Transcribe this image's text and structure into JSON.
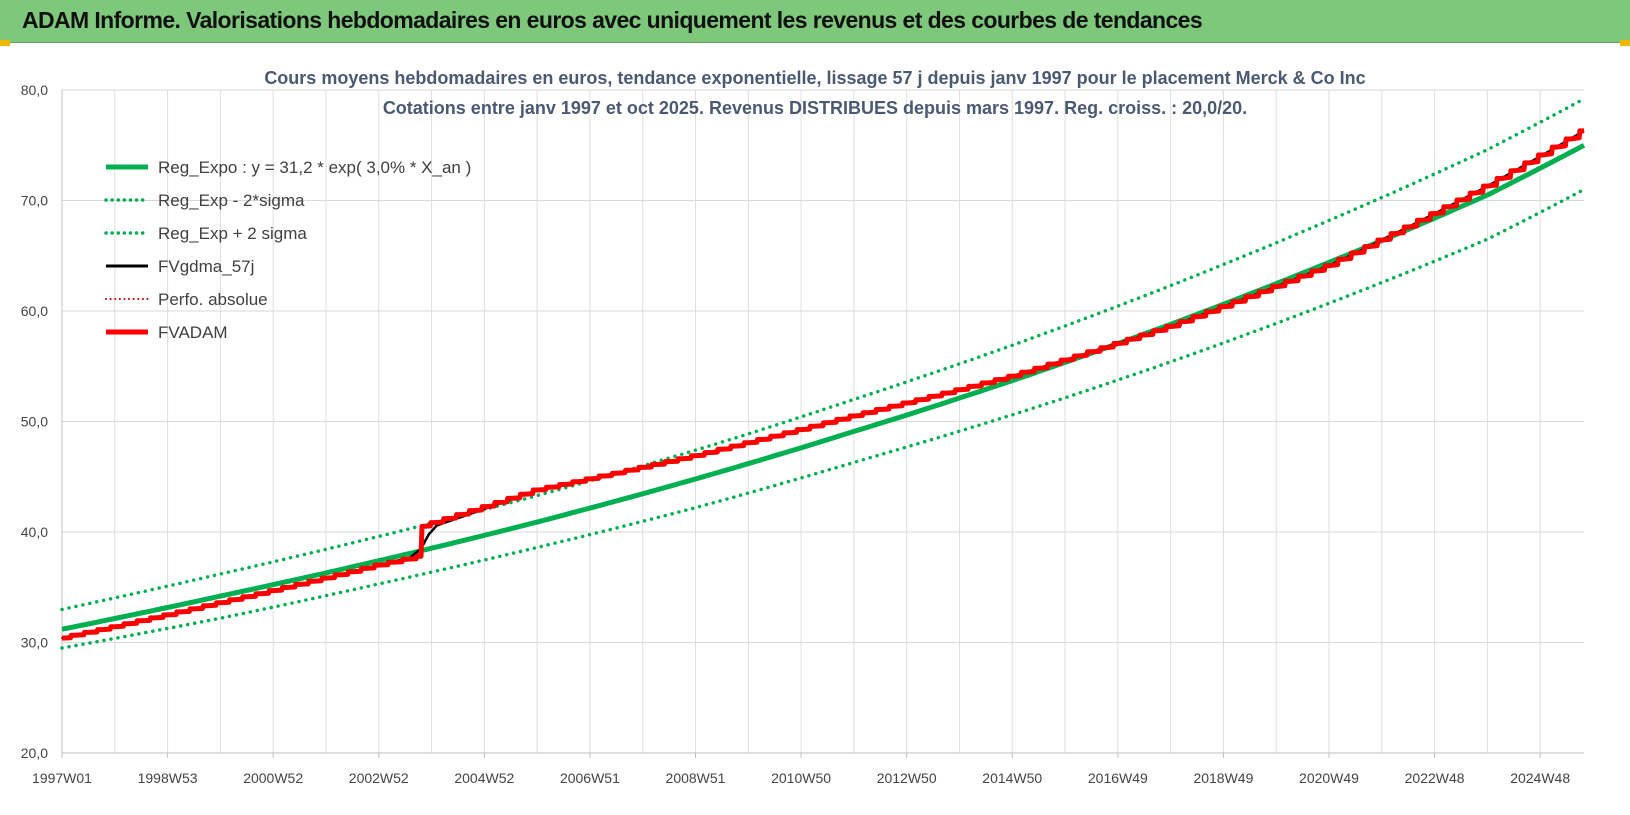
{
  "header": {
    "title": "ADAM Informe. Valorisations hebdomadaires en euros avec uniquement les revenus et des courbes de tendances"
  },
  "chart_data": {
    "type": "line",
    "title_line1": "Cours moyens hebdomadaires en euros, tendance exponentielle, lissage 57 j depuis janv 1997 pour le placement Merck & Co Inc",
    "title_line2": "Cotations entre janv 1997 et oct 2025. Revenus DISTRIBUES depuis mars 1997. Reg. croiss. : 20,0/20.",
    "ylim": [
      20,
      80
    ],
    "y_ticks": [
      "20,0",
      "30,0",
      "40,0",
      "50,0",
      "60,0",
      "70,0",
      "80,0"
    ],
    "x_range_years": [
      1997.0,
      2025.83
    ],
    "x_tick_labels": [
      "1997W01",
      "1998W53",
      "2000W52",
      "2002W52",
      "2004W52",
      "2006W51",
      "2008W51",
      "2010W50",
      "2012W50",
      "2014W50",
      "2016W49",
      "2018W49",
      "2020W49",
      "2022W48",
      "2024W48"
    ],
    "x_tick_years": [
      1997.0,
      1999.0,
      2001.0,
      2003.0,
      2005.0,
      2007.0,
      2009.0,
      2011.0,
      2013.0,
      2015.0,
      2017.0,
      2019.0,
      2021.0,
      2023.0,
      2025.0
    ],
    "grid": true,
    "legend_position": "top-left",
    "series": [
      {
        "name": "Reg_Expo : y = 31,2 * exp( 3,0% *  X_an )",
        "color": "#00b050",
        "style": "solid",
        "x": [
          1997.0,
          2000.0,
          2003.0,
          2006.0,
          2009.0,
          2012.0,
          2015.0,
          2018.0,
          2021.0,
          2024.0,
          2025.83
        ],
        "y": [
          31.2,
          34.2,
          37.4,
          40.9,
          44.8,
          49.1,
          53.7,
          58.8,
          64.4,
          70.5,
          75.0
        ]
      },
      {
        "name": "Reg_Exp - 2*sigma",
        "color": "#00b050",
        "style": "dotted",
        "x": [
          1997.0,
          2000.0,
          2003.0,
          2006.0,
          2009.0,
          2012.0,
          2015.0,
          2018.0,
          2021.0,
          2024.0,
          2025.83
        ],
        "y": [
          29.5,
          32.2,
          35.3,
          38.6,
          42.2,
          46.3,
          50.6,
          55.4,
          60.7,
          66.5,
          71.0
        ]
      },
      {
        "name": "Reg_Exp + 2 sigma",
        "color": "#00b050",
        "style": "dotted",
        "x": [
          1997.0,
          2000.0,
          2003.0,
          2006.0,
          2009.0,
          2012.0,
          2015.0,
          2018.0,
          2021.0,
          2024.0,
          2025.83
        ],
        "y": [
          33.0,
          36.2,
          39.6,
          43.3,
          47.4,
          52.0,
          56.9,
          62.3,
          68.2,
          74.6,
          79.2
        ]
      },
      {
        "name": "FVgdma_57j",
        "color": "#000000",
        "style": "solid",
        "x": [
          1997.0,
          2000.0,
          2003.0,
          2003.6,
          2003.8,
          2003.95,
          2004.1,
          2006.0,
          2009.0,
          2012.0,
          2015.0,
          2018.0,
          2021.0,
          2024.0,
          2025.83
        ],
        "y": [
          30.4,
          33.6,
          37.0,
          37.7,
          38.5,
          39.8,
          40.6,
          43.8,
          46.9,
          50.5,
          54.1,
          58.6,
          64.1,
          71.3,
          76.3
        ]
      },
      {
        "name": "Perfo. absolue",
        "color": "#c00000",
        "style": "dotted",
        "x": [
          1997.0,
          2000.0,
          2003.0,
          2003.8,
          2003.82,
          2006.0,
          2009.0,
          2012.0,
          2015.0,
          2018.0,
          2021.0,
          2024.0,
          2025.83
        ],
        "y": [
          30.4,
          33.6,
          37.0,
          37.8,
          40.5,
          43.8,
          46.9,
          50.5,
          54.1,
          58.6,
          64.1,
          71.3,
          76.3
        ]
      },
      {
        "name": "FVADAM",
        "color": "#ff0000",
        "style": "solid",
        "x": [
          1997.0,
          2000.0,
          2003.0,
          2003.8,
          2003.82,
          2006.0,
          2009.0,
          2012.0,
          2015.0,
          2018.0,
          2021.0,
          2024.0,
          2025.83
        ],
        "y": [
          30.4,
          33.6,
          37.0,
          37.8,
          40.5,
          43.8,
          46.9,
          50.5,
          54.1,
          58.6,
          64.1,
          71.3,
          76.3
        ]
      }
    ]
  }
}
